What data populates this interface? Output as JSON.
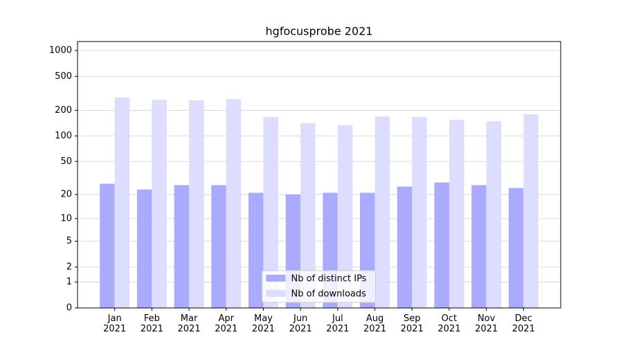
{
  "chart_data": {
    "type": "bar",
    "title": "hgfocusprobe 2021",
    "categories": [
      "Jan\n2021",
      "Feb\n2021",
      "Mar\n2021",
      "Apr\n2021",
      "May\n2021",
      "Jun\n2021",
      "Jul\n2021",
      "Aug\n2021",
      "Sep\n2021",
      "Oct\n2021",
      "Nov\n2021",
      "Dec\n2021"
    ],
    "series": [
      {
        "name": "Nb of distinct IPs",
        "color": "#aaaaff",
        "values": [
          27,
          23,
          26,
          26,
          21,
          20,
          21,
          21,
          25,
          28,
          26,
          24
        ]
      },
      {
        "name": "Nb of downloads",
        "color": "#ddddff",
        "values": [
          282,
          266,
          262,
          271,
          167,
          141,
          134,
          170,
          167,
          155,
          149,
          180
        ]
      }
    ],
    "yscale": "log1p",
    "ylim": [
      0,
      1273
    ],
    "yticks": [
      0,
      1,
      2,
      5,
      10,
      20,
      50,
      100,
      200,
      500,
      1000
    ],
    "grid": true,
    "legend": "lower center"
  }
}
